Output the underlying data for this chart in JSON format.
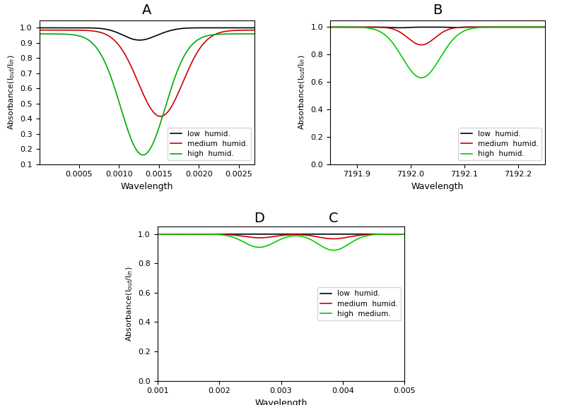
{
  "panel_A": {
    "title": "A",
    "xlabel": "Wavelength",
    "xlim": [
      0.0,
      0.0027
    ],
    "ylim": [
      0.1,
      1.05
    ],
    "yticks": [
      0.1,
      0.2,
      0.3,
      0.4,
      0.5,
      0.6,
      0.7,
      0.8,
      0.9,
      1.0
    ],
    "xticks": [
      0.0005,
      0.001,
      0.0015,
      0.002,
      0.0025
    ],
    "legend": [
      "low  humid.",
      "medium  humid.",
      "high  humid."
    ],
    "colors": [
      "#000000",
      "#cc0000",
      "#00aa00"
    ]
  },
  "panel_B": {
    "title": "B",
    "xlabel": "Wavelength",
    "xlim": [
      7191.85,
      7192.25
    ],
    "ylim": [
      0.0,
      1.05
    ],
    "yticks": [
      0.0,
      0.2,
      0.4,
      0.6,
      0.8,
      1.0
    ],
    "xticks": [
      7191.9,
      7192.0,
      7192.1,
      7192.2
    ],
    "legend": [
      "low  humid.",
      "medium  humid.",
      "high  humid."
    ],
    "colors": [
      "#000000",
      "#cc0000",
      "#00cc00"
    ]
  },
  "panel_DC": {
    "title_D": "D",
    "title_C": "C",
    "xlabel": "Wavelength",
    "xlim": [
      0.001,
      0.005
    ],
    "ylim": [
      0.0,
      1.05
    ],
    "yticks": [
      0.0,
      0.2,
      0.4,
      0.6,
      0.8,
      1.0
    ],
    "xticks": [
      0.001,
      0.002,
      0.003,
      0.004,
      0.005
    ],
    "legend": [
      "low  humid.",
      "medium  humid.",
      "high  medium."
    ],
    "colors": [
      "#000000",
      "#cc0000",
      "#00cc00"
    ]
  }
}
